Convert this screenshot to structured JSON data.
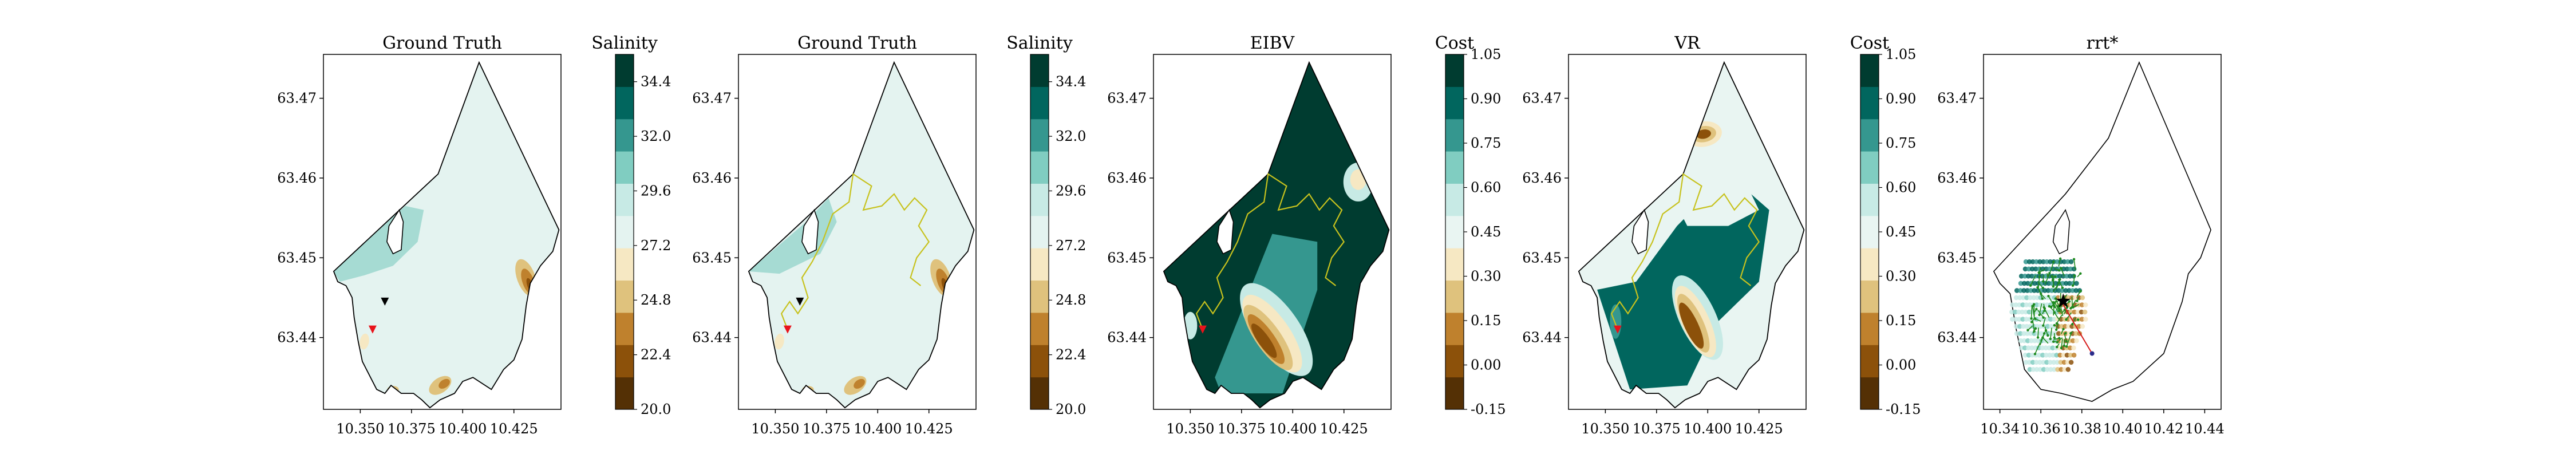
{
  "figure": {
    "title": "",
    "caption": ""
  },
  "colors": {
    "salinity_scale": [
      "#543005",
      "#8c510a",
      "#bf812d",
      "#dfc27d",
      "#f6e8c3",
      "#e4f3f0",
      "#c7eae5",
      "#80cdc1",
      "#35978f",
      "#01665e",
      "#003c30"
    ],
    "cost_scale": [
      "#543005",
      "#8c510a",
      "#bf812d",
      "#dfc27d",
      "#f6e8c3",
      "#e9f5f2",
      "#c7eae5",
      "#80cdc1",
      "#35978f",
      "#01665e",
      "#003c30"
    ],
    "path": "#c7c21e",
    "start_marker": "#e8131b",
    "current_marker": "#000000",
    "tree": "#1f8a1f",
    "best_path": "#d61a1a"
  },
  "chart_data": [
    {
      "type": "heatmap",
      "title": "Ground Truth",
      "colorbar": {
        "label": "Salinity",
        "ticks": [
          "34.4",
          "32.0",
          "29.6",
          "27.2",
          "24.8",
          "22.4",
          "20.0"
        ],
        "range": [
          20.0,
          35.6
        ]
      },
      "x_ticks": [
        "10.350",
        "10.375",
        "10.400",
        "10.425"
      ],
      "y_ticks": [
        "63.47",
        "63.46",
        "63.45",
        "63.44"
      ],
      "show_path": false,
      "markers": [
        {
          "name": "current",
          "x": 10.362,
          "y": 63.4445,
          "color": "#000000"
        },
        {
          "name": "start",
          "x": 10.356,
          "y": 63.441,
          "color": "#e8131b"
        }
      ]
    },
    {
      "type": "heatmap",
      "title": "Ground Truth",
      "colorbar": {
        "label": "Salinity",
        "ticks": [
          "34.4",
          "32.0",
          "29.6",
          "27.2",
          "24.8",
          "22.4",
          "20.0"
        ],
        "range": [
          20.0,
          35.6
        ]
      },
      "x_ticks": [
        "10.350",
        "10.375",
        "10.400",
        "10.425"
      ],
      "y_ticks": [
        "63.47",
        "63.46",
        "63.45",
        "63.44"
      ],
      "show_path": true,
      "markers": [
        {
          "name": "current",
          "x": 10.362,
          "y": 63.4445,
          "color": "#000000"
        },
        {
          "name": "start",
          "x": 10.356,
          "y": 63.441,
          "color": "#e8131b"
        }
      ]
    },
    {
      "type": "heatmap",
      "title": "EIBV",
      "colorbar": {
        "label": "Cost",
        "ticks": [
          "1.05",
          "0.90",
          "0.75",
          "0.60",
          "0.45",
          "0.30",
          "0.15",
          "0.00",
          "-0.15"
        ],
        "range": [
          -0.15,
          1.05
        ]
      },
      "x_ticks": [
        "10.350",
        "10.375",
        "10.400",
        "10.425"
      ],
      "y_ticks": [
        "63.47",
        "63.46",
        "63.45",
        "63.44"
      ],
      "show_path": true,
      "markers": [
        {
          "name": "start",
          "x": 10.356,
          "y": 63.441,
          "color": "#e8131b"
        }
      ]
    },
    {
      "type": "heatmap",
      "title": "VR",
      "colorbar": {
        "label": "Cost",
        "ticks": [
          "1.05",
          "0.90",
          "0.75",
          "0.60",
          "0.45",
          "0.30",
          "0.15",
          "0.00",
          "-0.15"
        ],
        "range": [
          -0.15,
          1.05
        ]
      },
      "x_ticks": [
        "10.350",
        "10.375",
        "10.400",
        "10.425"
      ],
      "y_ticks": [
        "63.47",
        "63.46",
        "63.45",
        "63.44"
      ],
      "show_path": true,
      "markers": [
        {
          "name": "start",
          "x": 10.356,
          "y": 63.441,
          "color": "#e8131b"
        }
      ]
    },
    {
      "type": "scatter",
      "title": "rrt*",
      "x_ticks": [
        "10.34",
        "10.36",
        "10.38",
        "10.40",
        "10.42",
        "10.44"
      ],
      "y_ticks": [
        "63.47",
        "63.46",
        "63.45",
        "63.44"
      ],
      "markers": [
        {
          "name": "current",
          "x": 10.37,
          "y": 63.4445,
          "color": "#000000"
        }
      ]
    }
  ]
}
